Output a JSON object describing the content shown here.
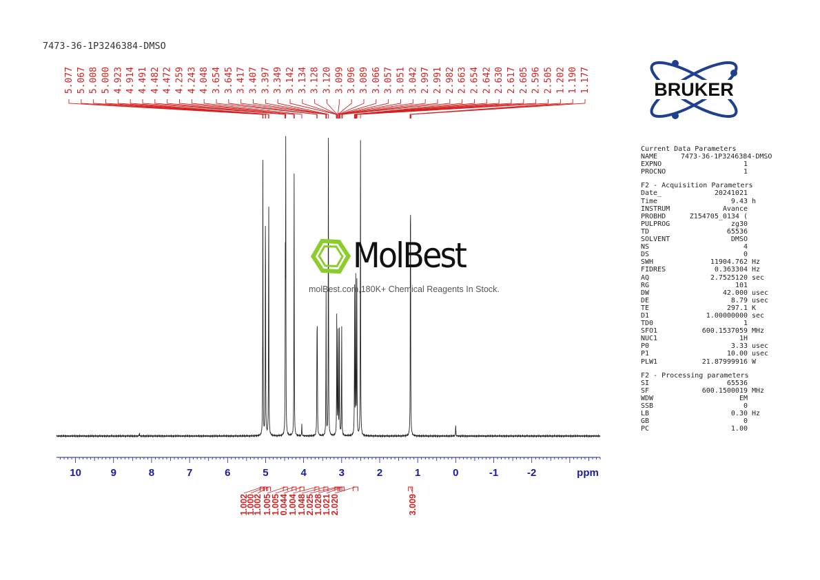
{
  "title": "7473-36-1P3246384-DMSO",
  "logo": {
    "text": "BRUKER"
  },
  "watermark": {
    "name": "MolBest",
    "tagline": "molBest.com,180K+ Chemical Reagents In Stock."
  },
  "parameters": [
    {
      "heading": "Current Data Parameters",
      "rows": [
        {
          "k": "NAME",
          "v": "7473-36-1P3246384-DMSO",
          "u": ""
        },
        {
          "k": "EXPNO",
          "v": "1",
          "u": ""
        },
        {
          "k": "PROCNO",
          "v": "1",
          "u": ""
        }
      ]
    },
    {
      "heading": "F2 - Acquisition Parameters",
      "rows": [
        {
          "k": "Date_",
          "v": "20241021",
          "u": ""
        },
        {
          "k": "Time",
          "v": "9.43",
          "u": "h"
        },
        {
          "k": "INSTRUM",
          "v": "Avance",
          "u": ""
        },
        {
          "k": "PROBHD",
          "v": "Z154705_0134 (",
          "u": ""
        },
        {
          "k": "PULPROG",
          "v": "zg30",
          "u": ""
        },
        {
          "k": "TD",
          "v": "65536",
          "u": ""
        },
        {
          "k": "SOLVENT",
          "v": "DMSO",
          "u": ""
        },
        {
          "k": "NS",
          "v": "4",
          "u": ""
        },
        {
          "k": "DS",
          "v": "0",
          "u": ""
        },
        {
          "k": "SWH",
          "v": "11904.762",
          "u": "Hz"
        },
        {
          "k": "FIDRES",
          "v": "0.363304",
          "u": "Hz"
        },
        {
          "k": "AQ",
          "v": "2.7525120",
          "u": "sec"
        },
        {
          "k": "RG",
          "v": "101",
          "u": ""
        },
        {
          "k": "DW",
          "v": "42.000",
          "u": "usec"
        },
        {
          "k": "DE",
          "v": "8.79",
          "u": "usec"
        },
        {
          "k": "TE",
          "v": "297.1",
          "u": "K"
        },
        {
          "k": "D1",
          "v": "1.00000000",
          "u": "sec"
        },
        {
          "k": "TD0",
          "v": "1",
          "u": ""
        },
        {
          "k": "SFO1",
          "v": "600.1537059",
          "u": "MHz"
        },
        {
          "k": "NUC1",
          "v": "1H",
          "u": ""
        },
        {
          "k": "P0",
          "v": "3.33",
          "u": "usec"
        },
        {
          "k": "P1",
          "v": "10.00",
          "u": "usec"
        },
        {
          "k": "PLW1",
          "v": "21.87999916",
          "u": "W"
        }
      ]
    },
    {
      "heading": "F2 - Processing parameters",
      "rows": [
        {
          "k": "SI",
          "v": "65536",
          "u": ""
        },
        {
          "k": "SF",
          "v": "600.1500019",
          "u": "MHz"
        },
        {
          "k": "WDW",
          "v": "EM",
          "u": ""
        },
        {
          "k": "SSB",
          "v": "0",
          "u": ""
        },
        {
          "k": "LB",
          "v": "0.30",
          "u": "Hz"
        },
        {
          "k": "GB",
          "v": "0",
          "u": ""
        },
        {
          "k": "PC",
          "v": "1.00",
          "u": ""
        }
      ]
    }
  ],
  "chart_data": {
    "type": "line",
    "xlabel": "ppm",
    "xlim": [
      10.5,
      -3.8
    ],
    "reversed_x": true,
    "ticks": [
      "10",
      "9",
      "8",
      "7",
      "6",
      "5",
      "4",
      "3",
      "2",
      "1",
      "0",
      "-1",
      "-2"
    ],
    "peak_labels": [
      "5.077",
      "5.067",
      "5.008",
      "5.000",
      "4.923",
      "4.914",
      "4.491",
      "4.482",
      "4.472",
      "4.259",
      "4.243",
      "4.048",
      "3.654",
      "3.645",
      "3.417",
      "3.407",
      "3.397",
      "3.349",
      "3.142",
      "3.134",
      "3.128",
      "3.120",
      "3.099",
      "3.096",
      "3.089",
      "3.066",
      "3.057",
      "3.051",
      "3.042",
      "2.997",
      "2.991",
      "2.982",
      "2.663",
      "2.654",
      "2.642",
      "2.630",
      "2.617",
      "2.605",
      "2.596",
      "2.505",
      "1.202",
      "1.190",
      "1.177"
    ],
    "peaks": [
      {
        "ppm": 5.072,
        "height": 0.88
      },
      {
        "ppm": 5.004,
        "height": 0.86
      },
      {
        "ppm": 4.919,
        "height": 0.87
      },
      {
        "ppm": 4.482,
        "height": 0.51
      },
      {
        "ppm": 4.47,
        "height": 0.9
      },
      {
        "ppm": 4.251,
        "height": 0.91
      },
      {
        "ppm": 4.048,
        "height": 0.04
      },
      {
        "ppm": 3.65,
        "height": 0.31
      },
      {
        "ppm": 3.64,
        "height": 0.33
      },
      {
        "ppm": 3.41,
        "height": 0.46
      },
      {
        "ppm": 3.349,
        "height": 1.0
      },
      {
        "ppm": 3.128,
        "height": 0.43
      },
      {
        "ppm": 3.096,
        "height": 0.41
      },
      {
        "ppm": 3.06,
        "height": 0.4
      },
      {
        "ppm": 3.0,
        "height": 0.39
      },
      {
        "ppm": 2.66,
        "height": 0.5
      },
      {
        "ppm": 2.63,
        "height": 0.52
      },
      {
        "ppm": 2.6,
        "height": 0.5
      },
      {
        "ppm": 2.505,
        "height": 1.0
      },
      {
        "ppm": 1.19,
        "height": 1.0
      },
      {
        "ppm": 0.0,
        "height": 0.04
      },
      {
        "ppm": 8.32,
        "height": 0.01
      }
    ],
    "integrals": [
      {
        "value": "1.002",
        "range": [
          5.14,
          5.04
        ]
      },
      {
        "value": "1.000",
        "range": [
          5.04,
          4.97
        ]
      },
      {
        "value": "1.002",
        "range": [
          4.97,
          4.88
        ]
      },
      {
        "value": "1.005",
        "range": [
          4.53,
          4.43
        ]
      },
      {
        "value": "1.005",
        "range": [
          4.3,
          4.2
        ]
      },
      {
        "value": "0.044",
        "range": [
          4.08,
          4.01
        ]
      },
      {
        "value": "1.004",
        "range": [
          3.7,
          3.6
        ]
      },
      {
        "value": "1.048",
        "range": [
          3.45,
          3.38
        ]
      },
      {
        "value": "2.025",
        "range": [
          3.17,
          3.08
        ]
      },
      {
        "value": "1.028",
        "range": [
          3.08,
          3.02
        ]
      },
      {
        "value": "1.021",
        "range": [
          3.02,
          2.96
        ]
      },
      {
        "value": "2.020",
        "range": [
          2.7,
          2.57
        ]
      },
      {
        "value": "3.009",
        "range": [
          1.23,
          1.15
        ]
      }
    ]
  }
}
